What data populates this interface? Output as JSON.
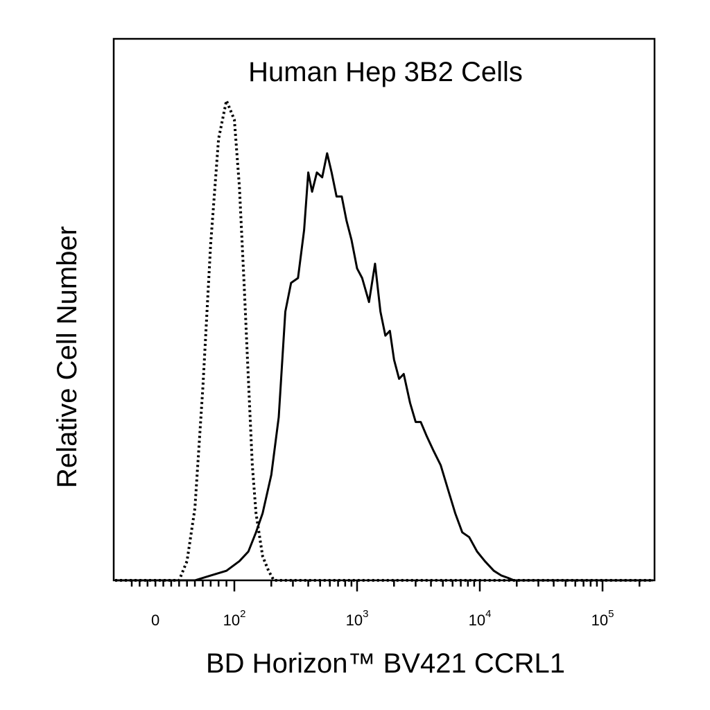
{
  "chart_data": {
    "type": "line",
    "title": "Human Hep 3B2 Cells",
    "xlabel": "BD Horizon™ BV421  CCRL1",
    "ylabel": "Relative Cell Number",
    "x_scale": "biexponential",
    "xlim": [
      -30,
      200000
    ],
    "ylim": [
      0,
      1.0
    ],
    "grid": false,
    "legend": "none",
    "x_tick_labels": [
      {
        "value": 0,
        "base": "0",
        "exp": ""
      },
      {
        "value": 100,
        "base": "10",
        "exp": "2"
      },
      {
        "value": 1000,
        "base": "10",
        "exp": "3"
      },
      {
        "value": 10000,
        "base": "10",
        "exp": "4"
      },
      {
        "value": 100000,
        "base": "10",
        "exp": "5"
      }
    ],
    "series": [
      {
        "style": "dotted",
        "color": "#000000",
        "x": [
          30,
          40,
          50,
          60,
          70,
          80,
          90,
          100,
          110,
          120,
          130,
          140,
          150,
          170,
          190,
          210,
          240,
          280
        ],
        "y": [
          0.0,
          0.04,
          0.15,
          0.4,
          0.7,
          0.92,
          1.0,
          0.96,
          0.82,
          0.62,
          0.42,
          0.24,
          0.14,
          0.05,
          0.02,
          0.0,
          0.0,
          0.0
        ]
      },
      {
        "style": "solid",
        "color": "#000000",
        "x": [
          50,
          70,
          90,
          110,
          130,
          150,
          170,
          200,
          230,
          260,
          290,
          330,
          370,
          400,
          430,
          470,
          520,
          570,
          620,
          680,
          750,
          820,
          900,
          1000,
          1100,
          1250,
          1400,
          1550,
          1700,
          1850,
          2000,
          2200,
          2400,
          2700,
          3000,
          3300,
          3700,
          4200,
          4800,
          5500,
          6300,
          7200,
          8200,
          9500,
          11000,
          13000,
          15000,
          17000,
          19000,
          22000,
          26000,
          30000,
          36000,
          45000
        ],
        "y": [
          0.0,
          0.01,
          0.02,
          0.04,
          0.06,
          0.1,
          0.14,
          0.22,
          0.34,
          0.56,
          0.62,
          0.63,
          0.73,
          0.85,
          0.81,
          0.85,
          0.84,
          0.89,
          0.85,
          0.8,
          0.8,
          0.75,
          0.71,
          0.65,
          0.63,
          0.58,
          0.66,
          0.56,
          0.51,
          0.52,
          0.46,
          0.42,
          0.43,
          0.37,
          0.33,
          0.33,
          0.3,
          0.27,
          0.24,
          0.19,
          0.14,
          0.1,
          0.09,
          0.06,
          0.04,
          0.02,
          0.01,
          0.005,
          0.0,
          0.0,
          0.0,
          0.0,
          0.0,
          0.0
        ]
      }
    ]
  }
}
